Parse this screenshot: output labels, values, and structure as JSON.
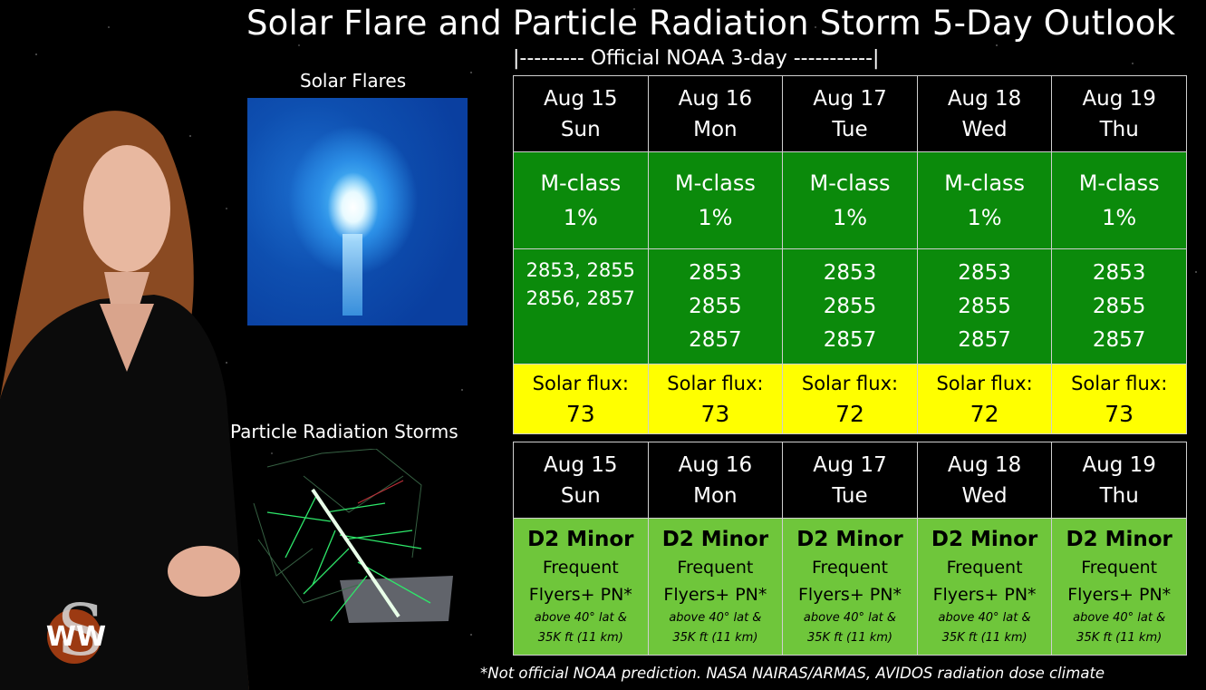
{
  "title": "Solar Flare and Particle Radiation Storm 5-Day Outlook",
  "noaa_label": "|--------- Official NOAA 3-day -----------|",
  "panels": {
    "solar_flares_label": "Solar Flares",
    "particle_storms_label": "Particle Radiation Storms"
  },
  "flare_table": {
    "days": [
      {
        "date": "Aug 15",
        "weekday": "Sun",
        "mclass": "M-class",
        "prob": "1%",
        "regions": [
          "2853, 2855",
          "2856, 2857"
        ],
        "flux_label": "Solar flux:",
        "flux": "73"
      },
      {
        "date": "Aug 16",
        "weekday": "Mon",
        "mclass": "M-class",
        "prob": "1%",
        "regions": [
          "2853",
          "2855",
          "2857"
        ],
        "flux_label": "Solar flux:",
        "flux": "73"
      },
      {
        "date": "Aug 17",
        "weekday": "Tue",
        "mclass": "M-class",
        "prob": "1%",
        "regions": [
          "2853",
          "2855",
          "2857"
        ],
        "flux_label": "Solar flux:",
        "flux": "72"
      },
      {
        "date": "Aug 18",
        "weekday": "Wed",
        "mclass": "M-class",
        "prob": "1%",
        "regions": [
          "2853",
          "2855",
          "2857"
        ],
        "flux_label": "Solar flux:",
        "flux": "72"
      },
      {
        "date": "Aug 19",
        "weekday": "Thu",
        "mclass": "M-class",
        "prob": "1%",
        "regions": [
          "2853",
          "2855",
          "2857"
        ],
        "flux_label": "Solar flux:",
        "flux": "73"
      }
    ]
  },
  "storm_table": {
    "days": [
      {
        "date": "Aug 15",
        "weekday": "Sun",
        "level": "D2 Minor",
        "line1": "Frequent",
        "line2": "Flyers+ PN*",
        "note1": "above 40° lat &",
        "note2": "35K ft (11 km)"
      },
      {
        "date": "Aug 16",
        "weekday": "Mon",
        "level": "D2 Minor",
        "line1": "Frequent",
        "line2": "Flyers+ PN*",
        "note1": "above 40° lat &",
        "note2": "35K ft (11 km)"
      },
      {
        "date": "Aug 17",
        "weekday": "Tue",
        "level": "D2 Minor",
        "line1": "Frequent",
        "line2": "Flyers+ PN*",
        "note1": "above 40° lat &",
        "note2": "35K ft (11 km)"
      },
      {
        "date": "Aug 18",
        "weekday": "Wed",
        "level": "D2 Minor",
        "line1": "Frequent",
        "line2": "Flyers+ PN*",
        "note1": "above 40° lat &",
        "note2": "35K ft (11 km)"
      },
      {
        "date": "Aug 19",
        "weekday": "Thu",
        "level": "D2 Minor",
        "line1": "Frequent",
        "line2": "Flyers+ PN*",
        "note1": "above 40° lat &",
        "note2": "35K ft (11 km)"
      }
    ]
  },
  "footnote": "*Not official NOAA prediction. NASA NAIRAS/ARMAS, AVIDOS radiation dose climate",
  "colors": {
    "flare_green": "#0b8a0b",
    "flux_yellow": "#ffff00",
    "storm_green": "#6fc63b"
  },
  "icons": {
    "logo": "space-weather-woman-logo"
  }
}
